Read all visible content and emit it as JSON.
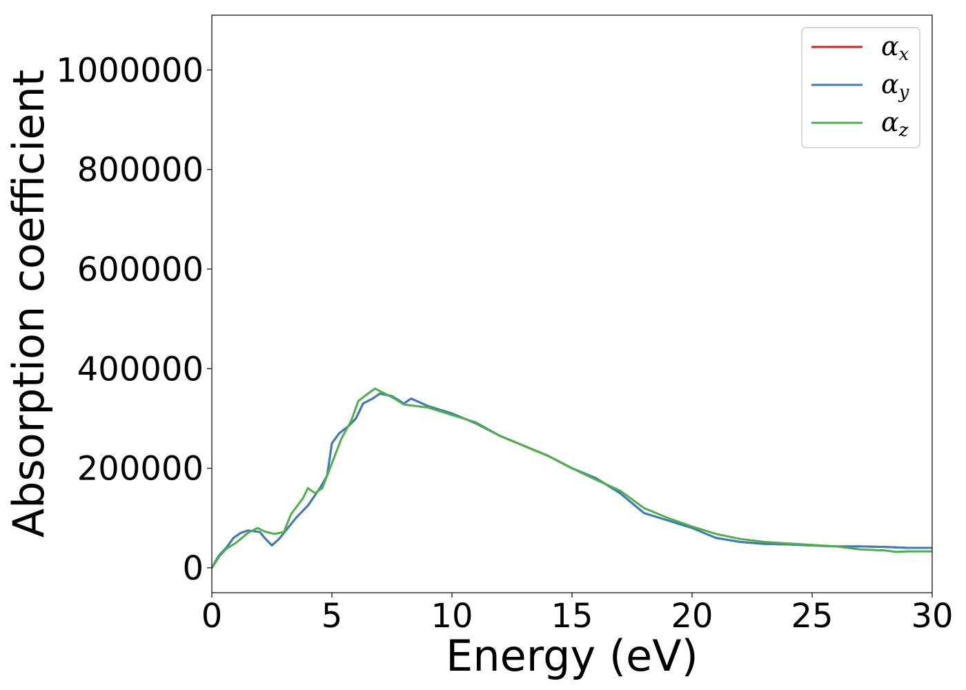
{
  "chart_data": {
    "type": "line",
    "title": "",
    "xlabel": "Energy (eV)",
    "ylabel": "Absorption coefficient",
    "xlim": [
      0,
      30
    ],
    "ylim": [
      -50000,
      1110000
    ],
    "xticks": [
      0,
      5,
      10,
      15,
      20,
      25,
      30
    ],
    "yticks": [
      0,
      200000,
      400000,
      600000,
      800000,
      1000000
    ],
    "xtick_labels": [
      "0",
      "5",
      "10",
      "15",
      "20",
      "25",
      "30"
    ],
    "ytick_labels": [
      "0",
      "200000",
      "400000",
      "600000",
      "800000",
      "1000000"
    ],
    "grid": false,
    "legend_position": "top-right",
    "series": [
      {
        "name": "α",
        "subscript": "x",
        "color": "#e41a1c",
        "x": [
          0,
          0.3,
          0.6,
          0.9,
          1.2,
          1.5,
          2.0,
          2.2,
          2.5,
          2.8,
          3.0,
          3.5,
          4.0,
          4.5,
          4.8,
          5.0,
          5.3,
          5.7,
          6.0,
          6.3,
          6.7,
          7.0,
          7.5,
          8.0,
          8.3,
          9.0,
          10.0,
          11.0,
          12.0,
          13.0,
          14.0,
          15.0,
          16.0,
          17.0,
          18.0,
          19.0,
          20.0,
          21.0,
          22.0,
          23.0,
          24.0,
          25.0,
          26.0,
          27.0,
          28.0,
          29.0,
          30.0
        ],
        "y": [
          0,
          25000,
          40000,
          60000,
          70000,
          75000,
          72000,
          60000,
          45000,
          58000,
          70000,
          100000,
          125000,
          160000,
          185000,
          250000,
          270000,
          285000,
          300000,
          330000,
          340000,
          350000,
          345000,
          330000,
          340000,
          325000,
          310000,
          290000,
          265000,
          245000,
          225000,
          200000,
          180000,
          150000,
          110000,
          95000,
          80000,
          60000,
          52000,
          48000,
          47000,
          45000,
          43000,
          43000,
          42000,
          40000,
          40000
        ]
      },
      {
        "name": "α",
        "subscript": "y",
        "color": "#377eb8",
        "x": [
          0,
          0.3,
          0.6,
          0.9,
          1.2,
          1.5,
          2.0,
          2.2,
          2.5,
          2.8,
          3.0,
          3.5,
          4.0,
          4.5,
          4.8,
          5.0,
          5.3,
          5.7,
          6.0,
          6.3,
          6.7,
          7.0,
          7.5,
          8.0,
          8.3,
          9.0,
          10.0,
          11.0,
          12.0,
          13.0,
          14.0,
          15.0,
          16.0,
          17.0,
          18.0,
          19.0,
          20.0,
          21.0,
          22.0,
          23.0,
          24.0,
          25.0,
          26.0,
          27.0,
          28.0,
          29.0,
          30.0
        ],
        "y": [
          0,
          25000,
          40000,
          60000,
          70000,
          75000,
          72000,
          60000,
          45000,
          58000,
          70000,
          100000,
          125000,
          160000,
          185000,
          250000,
          270000,
          285000,
          300000,
          330000,
          340000,
          350000,
          345000,
          330000,
          340000,
          325000,
          310000,
          290000,
          265000,
          245000,
          225000,
          200000,
          180000,
          150000,
          110000,
          95000,
          80000,
          60000,
          52000,
          48000,
          47000,
          45000,
          43000,
          43000,
          42000,
          40000,
          40000
        ]
      },
      {
        "name": "α",
        "subscript": "z",
        "color": "#4daf4a",
        "x": [
          0,
          0.3,
          0.6,
          1.0,
          1.5,
          1.9,
          2.2,
          2.6,
          3.0,
          3.3,
          3.8,
          4.0,
          4.3,
          4.6,
          5.0,
          5.4,
          5.8,
          6.1,
          6.5,
          6.8,
          7.2,
          7.6,
          8.0,
          9.0,
          10.0,
          11.0,
          12.0,
          13.0,
          14.0,
          15.0,
          16.0,
          17.0,
          18.0,
          19.0,
          20.0,
          21.0,
          22.0,
          22.5,
          23.0,
          24.0,
          25.0,
          26.0,
          27.0,
          28.0,
          28.5,
          29.0,
          30.0
        ],
        "y": [
          0,
          22000,
          38000,
          50000,
          70000,
          80000,
          73000,
          68000,
          72000,
          108000,
          140000,
          160000,
          150000,
          160000,
          210000,
          260000,
          295000,
          335000,
          350000,
          360000,
          350000,
          340000,
          328000,
          322000,
          307000,
          292000,
          265000,
          245000,
          225000,
          200000,
          177000,
          155000,
          120000,
          100000,
          83000,
          68000,
          58000,
          55000,
          52000,
          49000,
          46000,
          43000,
          37000,
          35000,
          32000,
          33000,
          33000
        ]
      }
    ]
  }
}
